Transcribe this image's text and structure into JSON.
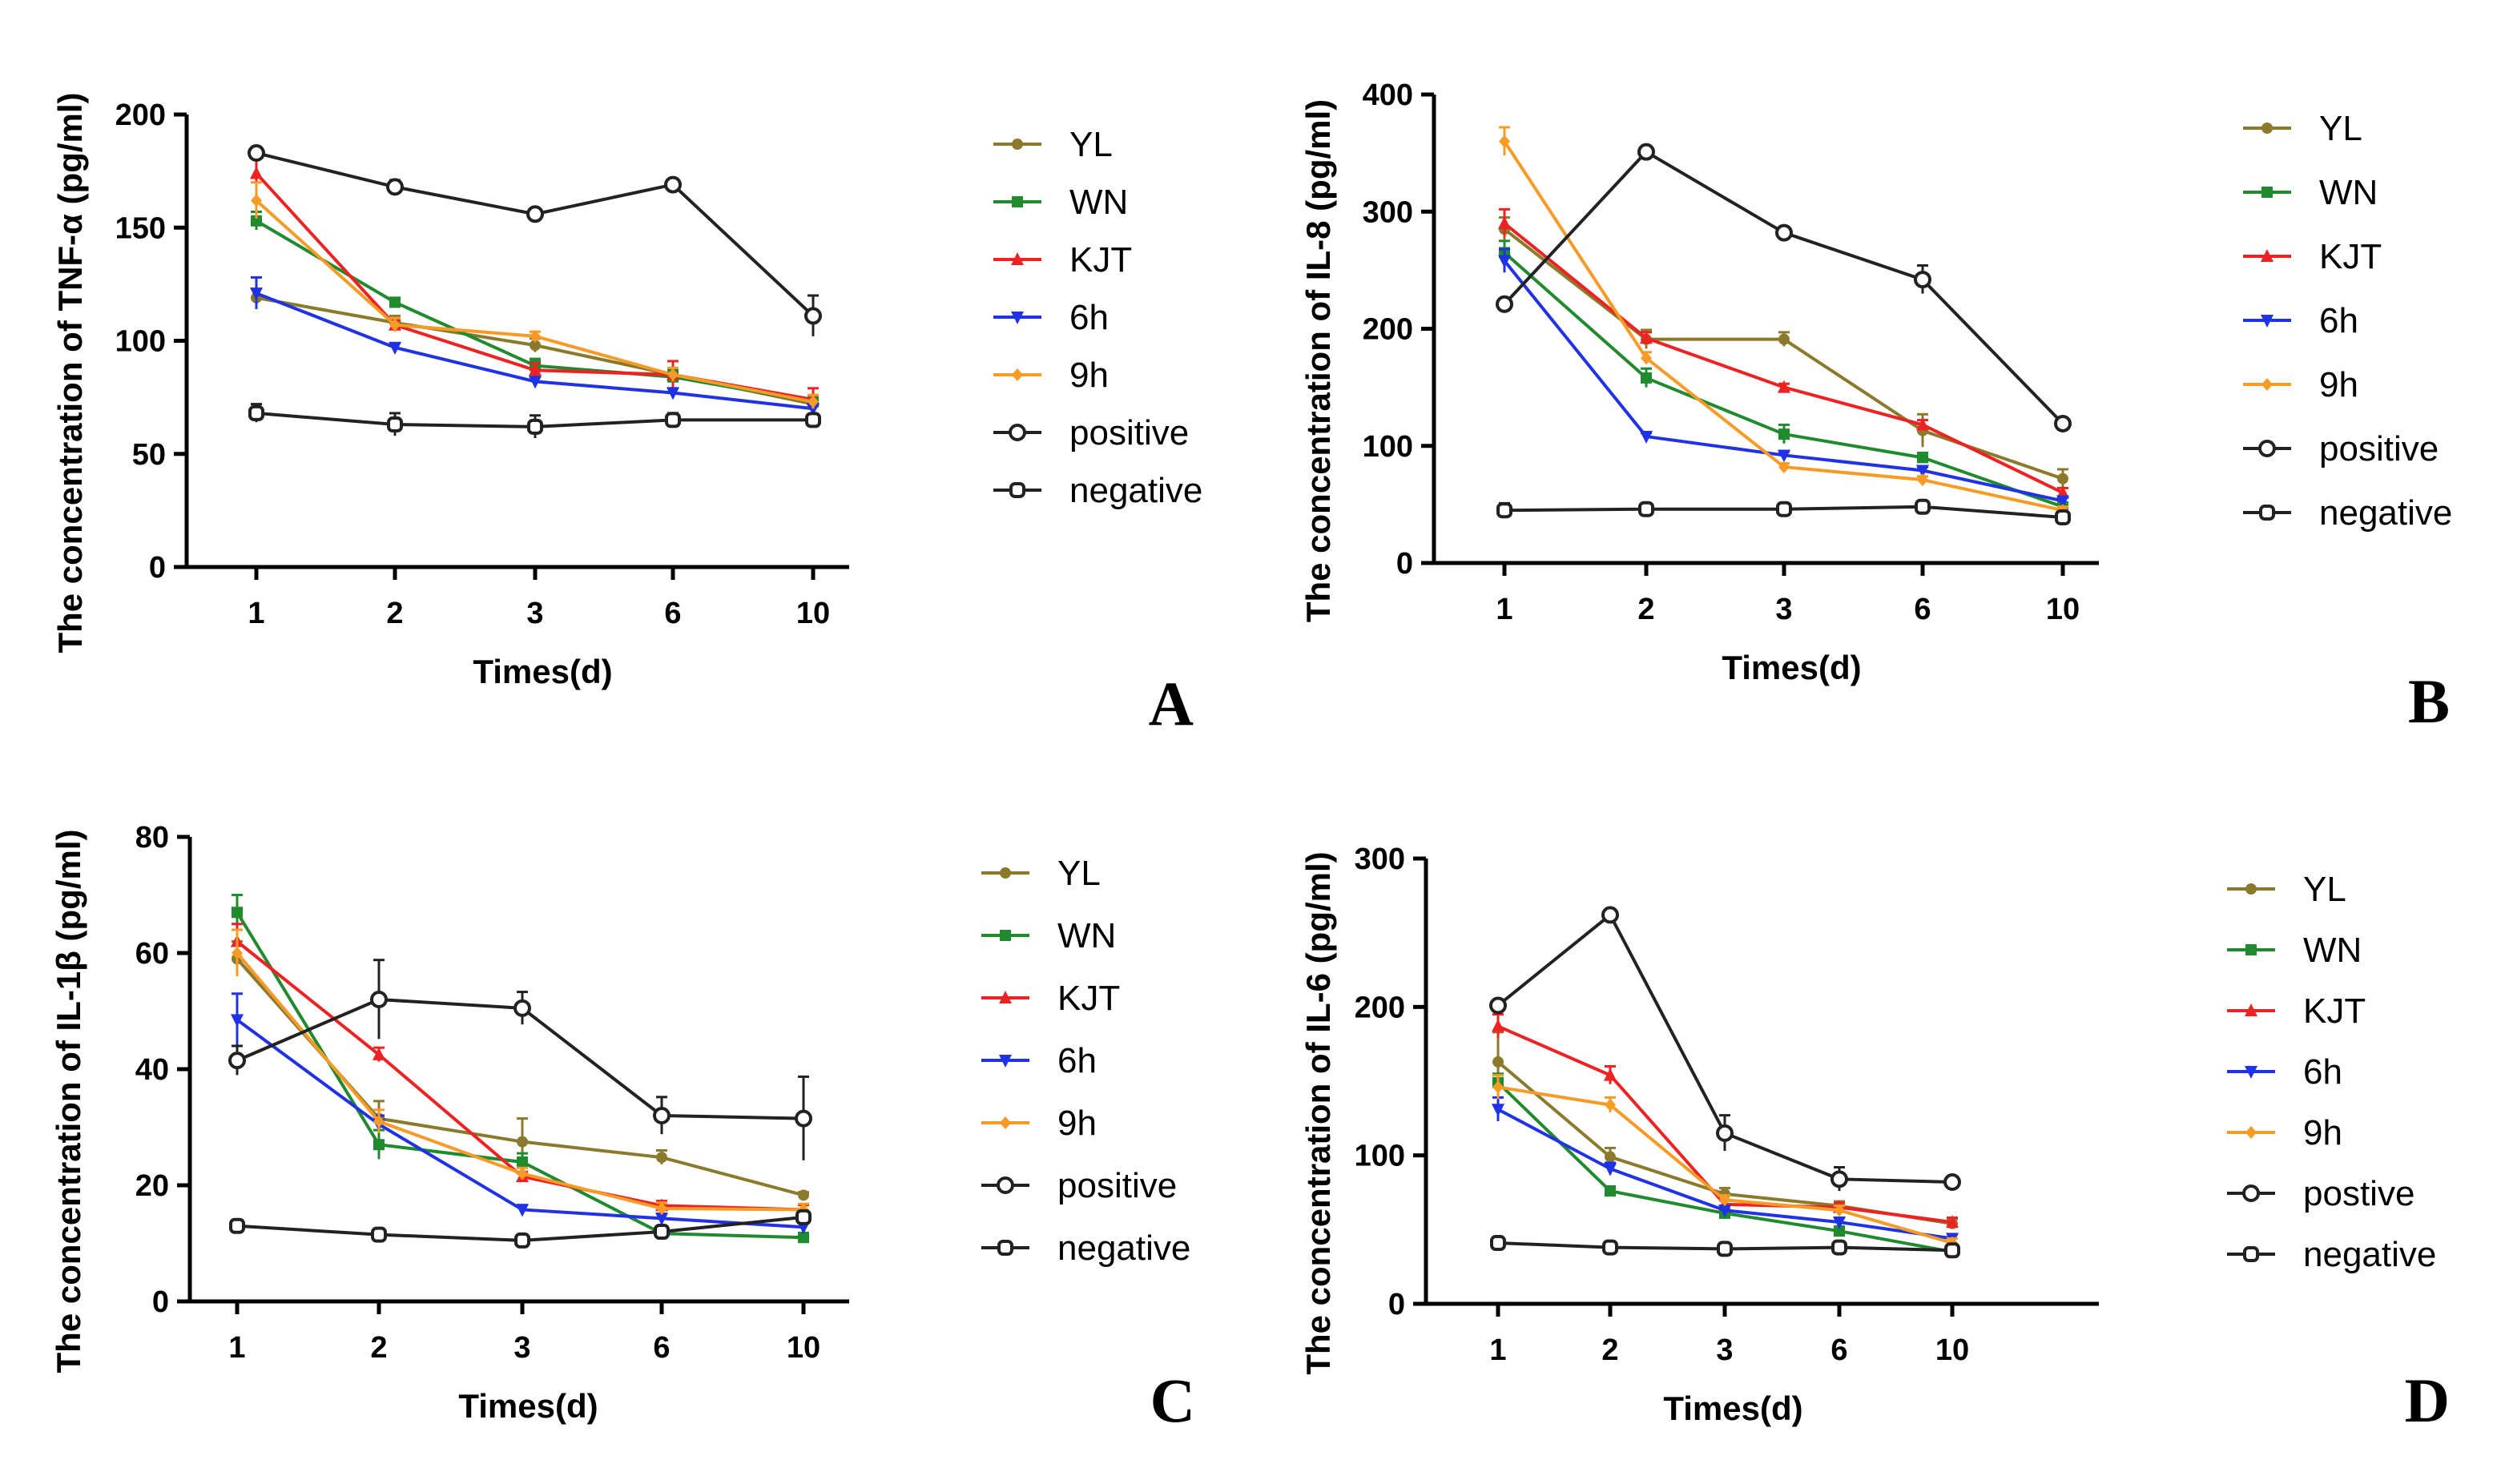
{
  "chart_data": [
    {
      "type": "line",
      "panel_letter": "A",
      "categories": [
        "1",
        "2",
        "3",
        "6",
        "10"
      ],
      "xlabel": "Times(d)",
      "ylabel": "The concentration of TNF-α (pg/ml)",
      "ylim": [
        0,
        200
      ],
      "yticks": [
        0,
        50,
        100,
        150,
        200
      ],
      "series": [
        {
          "name": "YL",
          "color": "#8b7a2b",
          "marker": "dot",
          "values": [
            119,
            108,
            98,
            85,
            72
          ],
          "errors": [
            4,
            3,
            3,
            3,
            3
          ]
        },
        {
          "name": "WN",
          "color": "#1f8a2e",
          "marker": "square",
          "values": [
            153,
            117,
            89,
            84,
            73
          ],
          "errors": [
            4,
            2,
            3,
            3,
            3
          ]
        },
        {
          "name": "KJT",
          "color": "#ee2222",
          "marker": "triangle",
          "values": [
            174,
            107,
            87,
            85,
            74
          ],
          "errors": [
            7,
            2,
            3,
            6,
            5
          ]
        },
        {
          "name": "6h",
          "color": "#1f32e6",
          "marker": "triangle-down",
          "values": [
            121,
            97,
            82,
            77,
            70
          ],
          "errors": [
            7,
            2,
            2,
            2,
            2
          ]
        },
        {
          "name": "9h",
          "color": "#f79a26",
          "marker": "diamond",
          "values": [
            162,
            107,
            102,
            85,
            73
          ],
          "errors": [
            8,
            3,
            2,
            3,
            3
          ]
        },
        {
          "name": "positive",
          "color": "#222222",
          "marker": "open-circle",
          "values": [
            183,
            168,
            156,
            169,
            111
          ],
          "errors": [
            2,
            3,
            2,
            2,
            9
          ]
        },
        {
          "name": "negative",
          "color": "#222222",
          "marker": "open-square",
          "values": [
            68,
            63,
            62,
            65,
            65
          ],
          "errors": [
            4,
            5,
            5,
            3,
            2
          ]
        }
      ]
    },
    {
      "type": "line",
      "panel_letter": "B",
      "categories": [
        "1",
        "2",
        "3",
        "6",
        "10"
      ],
      "xlabel": "Times(d)",
      "ylabel": "The concentration of IL-8 (pg/ml)",
      "ylim": [
        0,
        400
      ],
      "yticks": [
        0,
        100,
        200,
        300,
        400
      ],
      "series": [
        {
          "name": "YL",
          "color": "#8b7a2b",
          "marker": "dot",
          "values": [
            285,
            191,
            191,
            113,
            72
          ],
          "errors": [
            10,
            8,
            6,
            14,
            8
          ]
        },
        {
          "name": "WN",
          "color": "#1f8a2e",
          "marker": "square",
          "values": [
            265,
            158,
            110,
            90,
            48
          ],
          "errors": [
            10,
            8,
            8,
            4,
            3
          ]
        },
        {
          "name": "KJT",
          "color": "#ee2222",
          "marker": "triangle",
          "values": [
            290,
            192,
            150,
            118,
            60
          ],
          "errors": [
            12,
            5,
            3,
            4,
            4
          ]
        },
        {
          "name": "6h",
          "color": "#1f32e6",
          "marker": "triangle-down",
          "values": [
            258,
            108,
            92,
            79,
            53
          ],
          "errors": [
            10,
            3,
            3,
            3,
            3
          ]
        },
        {
          "name": "9h",
          "color": "#f79a26",
          "marker": "diamond",
          "values": [
            360,
            175,
            82,
            71,
            45
          ],
          "errors": [
            12,
            5,
            3,
            3,
            3
          ]
        },
        {
          "name": "positive",
          "color": "#222222",
          "marker": "open-circle",
          "values": [
            221,
            351,
            282,
            242,
            119
          ],
          "errors": [
            5,
            5,
            5,
            12,
            4
          ]
        },
        {
          "name": "negative",
          "color": "#222222",
          "marker": "open-square",
          "values": [
            45,
            46,
            46,
            48,
            39
          ],
          "errors": [
            6,
            3,
            3,
            3,
            3
          ]
        }
      ]
    },
    {
      "type": "line",
      "panel_letter": "C",
      "categories": [
        "1",
        "2",
        "3",
        "6",
        "10"
      ],
      "xlabel": "Times(d)",
      "ylabel": "The concentration of IL-1β (pg/ml)",
      "ylim": [
        0,
        80
      ],
      "yticks": [
        0,
        20,
        40,
        60,
        80
      ],
      "series": [
        {
          "name": "YL",
          "color": "#8b7a2b",
          "marker": "dot",
          "values": [
            59,
            31.5,
            27.5,
            24.8,
            18.3
          ],
          "errors": [
            3,
            3,
            4,
            1.2,
            0.5
          ]
        },
        {
          "name": "WN",
          "color": "#1f8a2e",
          "marker": "square",
          "values": [
            67,
            27,
            24,
            11.7,
            11
          ],
          "errors": [
            3,
            2.5,
            1.5,
            0.8,
            0.8
          ]
        },
        {
          "name": "KJT",
          "color": "#ee2222",
          "marker": "triangle",
          "values": [
            62,
            42.5,
            21.5,
            16.5,
            15.8
          ],
          "errors": [
            3,
            1.2,
            0.8,
            0.8,
            0.8
          ]
        },
        {
          "name": "6h",
          "color": "#1f32e6",
          "marker": "triangle-down",
          "values": [
            48.5,
            30.5,
            15.8,
            14.3,
            12.8
          ],
          "errors": [
            4.5,
            1.5,
            0.8,
            0.8,
            0.8
          ]
        },
        {
          "name": "9h",
          "color": "#f79a26",
          "marker": "diamond",
          "values": [
            60,
            31,
            22,
            16,
            15.8
          ],
          "errors": [
            4,
            2,
            1,
            1,
            1
          ]
        },
        {
          "name": "positive",
          "color": "#222222",
          "marker": "open-circle",
          "values": [
            41.5,
            52,
            50.5,
            32,
            31.5
          ],
          "errors": [
            2.5,
            6.8,
            2.8,
            3.2,
            7.2
          ]
        },
        {
          "name": "negative",
          "color": "#222222",
          "marker": "open-square",
          "values": [
            13,
            11.5,
            10.5,
            12,
            14.5
          ],
          "errors": [
            1,
            0.6,
            0.6,
            0.6,
            1
          ]
        }
      ]
    },
    {
      "type": "line",
      "panel_letter": "D",
      "categories": [
        "1",
        "2",
        "3",
        "6",
        "10"
      ],
      "xlabel": "Times(d)",
      "ylabel": "The concentration of IL-6 (pg/ml)",
      "ylim": [
        0,
        300
      ],
      "yticks": [
        0,
        100,
        200,
        300
      ],
      "series": [
        {
          "name": "YL",
          "color": "#8b7a2b",
          "marker": "dot",
          "values": [
            163,
            99,
            74,
            66,
            54
          ],
          "errors": [
            20,
            6,
            4,
            3,
            3
          ]
        },
        {
          "name": "WN",
          "color": "#1f8a2e",
          "marker": "square",
          "values": [
            149,
            76,
            61,
            49,
            35
          ],
          "errors": [
            6,
            3,
            3,
            3,
            3
          ]
        },
        {
          "name": "KJT",
          "color": "#ee2222",
          "marker": "triangle",
          "values": [
            187,
            154,
            67,
            65,
            55
          ],
          "errors": [
            8,
            6,
            3,
            3,
            3
          ]
        },
        {
          "name": "6h",
          "color": "#1f32e6",
          "marker": "triangle-down",
          "values": [
            131,
            91,
            63,
            55,
            44
          ],
          "errors": [
            8,
            4,
            3,
            3,
            3
          ]
        },
        {
          "name": "9h",
          "color": "#f79a26",
          "marker": "diamond",
          "values": [
            146,
            134,
            70,
            63,
            41
          ],
          "errors": [
            8,
            5,
            3,
            3,
            3
          ]
        },
        {
          "name": "postive",
          "color": "#222222",
          "marker": "open-circle",
          "values": [
            201,
            262,
            115,
            84,
            82
          ],
          "errors": [
            4,
            4,
            12,
            8,
            3
          ]
        },
        {
          "name": "negative",
          "color": "#222222",
          "marker": "open-square",
          "values": [
            41,
            38,
            37,
            38,
            36
          ],
          "errors": [
            3,
            2,
            2,
            2,
            2
          ]
        }
      ]
    }
  ]
}
